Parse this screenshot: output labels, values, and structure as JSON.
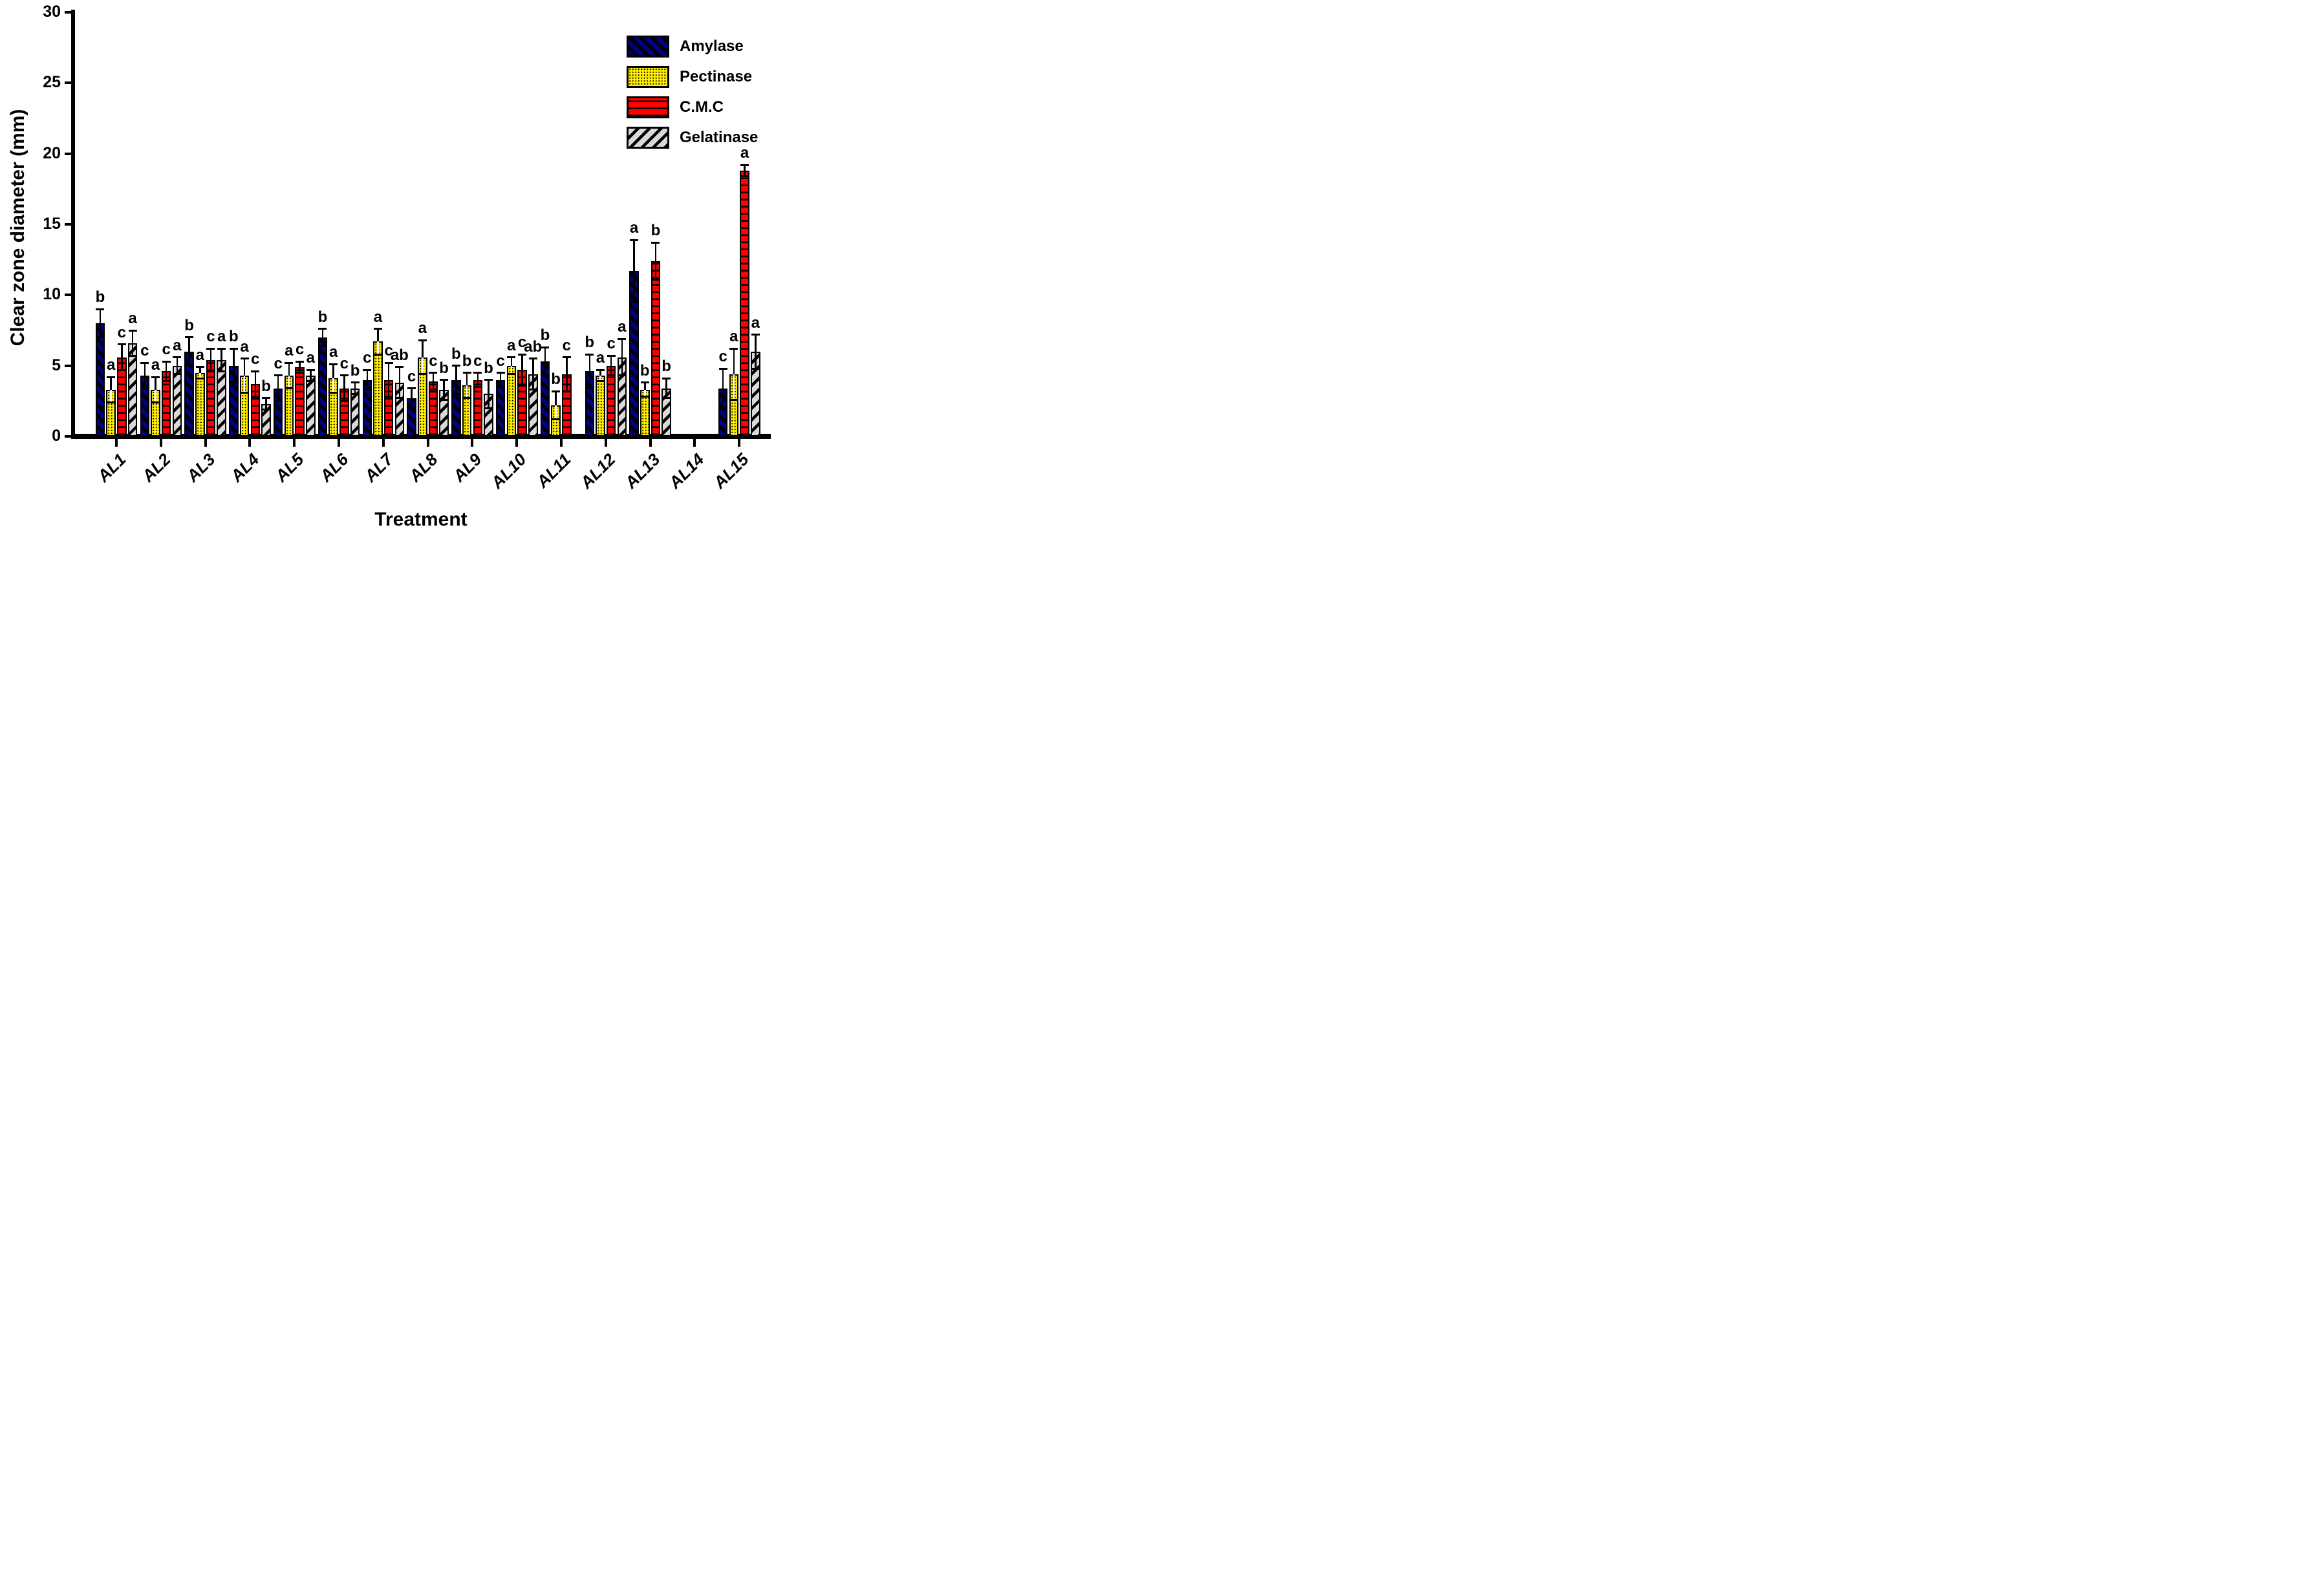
{
  "chart_data": {
    "type": "bar",
    "title": "",
    "xlabel": "Treatment",
    "ylabel": "Clear zone diameter (mm)",
    "ylim": [
      0,
      30
    ],
    "ytick_step": 5,
    "grid": false,
    "legend_position": "top-right",
    "error_bars": "plus-minus",
    "categories": [
      "AL1",
      "AL2",
      "AL3",
      "AL4",
      "AL5",
      "AL6",
      "AL7",
      "AL8",
      "AL9",
      "AL10",
      "AL11",
      "AL12",
      "AL13",
      "AL14",
      "AL15"
    ],
    "series": [
      {
        "name": "Amylase",
        "color": "#000080",
        "pattern": "diagonal-back-hatch",
        "values": [
          8.0,
          4.3,
          6.0,
          5.0,
          3.4,
          7.0,
          4.0,
          2.7,
          4.0,
          4.0,
          5.3,
          4.6,
          11.7,
          null,
          3.4
        ],
        "errors": [
          1.0,
          0.9,
          1.0,
          1.2,
          0.9,
          0.6,
          0.7,
          0.7,
          1.0,
          0.5,
          1.0,
          1.2,
          2.2,
          null,
          1.4
        ],
        "letters": [
          "b",
          "c",
          "b",
          "b",
          "c",
          "b",
          "c",
          "c",
          "b",
          "c",
          "b",
          "b",
          "a",
          "",
          "c"
        ]
      },
      {
        "name": "Pectinase",
        "color": "#FFEE00",
        "pattern": "dots",
        "values": [
          3.3,
          3.3,
          4.5,
          4.3,
          4.3,
          4.1,
          6.7,
          5.6,
          3.6,
          5.0,
          2.2,
          4.3,
          3.3,
          null,
          4.4
        ],
        "errors": [
          0.9,
          0.9,
          0.4,
          1.2,
          0.9,
          1.0,
          0.9,
          1.2,
          0.9,
          0.6,
          1.0,
          0.4,
          0.5,
          null,
          1.8
        ],
        "letters": [
          "a",
          "a",
          "a",
          "a",
          "a",
          "a",
          "a",
          "a",
          "b",
          "a",
          "b",
          "a",
          "b",
          "",
          "a"
        ]
      },
      {
        "name": "C.M.C",
        "color": "#FF0000",
        "pattern": "horizontal-lines",
        "values": [
          5.6,
          4.6,
          5.4,
          3.7,
          4.9,
          3.4,
          4.0,
          3.9,
          4.0,
          4.7,
          4.4,
          5.0,
          12.4,
          null,
          18.8
        ],
        "errors": [
          0.9,
          0.7,
          0.8,
          0.9,
          0.4,
          0.9,
          1.2,
          0.6,
          0.5,
          1.1,
          1.2,
          0.7,
          1.3,
          null,
          0.4
        ],
        "letters": [
          "c",
          "c",
          "c",
          "c",
          "c",
          "c",
          "c",
          "c",
          "c",
          "c",
          "c",
          "c",
          "b",
          "",
          "a"
        ]
      },
      {
        "name": "Gelatinase",
        "color": "#D9D9D9",
        "pattern": "diagonal-fwd-hatch",
        "values": [
          6.6,
          5.0,
          5.4,
          2.3,
          4.3,
          3.4,
          3.8,
          3.3,
          3.0,
          4.4,
          null,
          5.6,
          3.4,
          null,
          6.0
        ],
        "errors": [
          0.9,
          0.6,
          0.8,
          0.4,
          0.4,
          0.4,
          1.1,
          0.7,
          1.0,
          1.1,
          null,
          1.3,
          0.7,
          null,
          1.2
        ],
        "letters": [
          "a",
          "a",
          "a",
          "b",
          "a",
          "b",
          "ab",
          "b",
          "b",
          "ab",
          "",
          "a",
          "b",
          "",
          "a"
        ]
      }
    ],
    "ytick_labels": [
      "0",
      "5",
      "10",
      "15",
      "20",
      "25",
      "30"
    ]
  }
}
